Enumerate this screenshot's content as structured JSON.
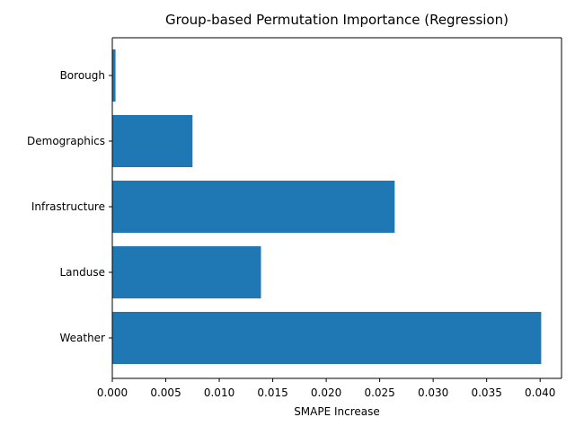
{
  "chart_data": {
    "type": "bar",
    "orientation": "horizontal",
    "title": "Group-based Permutation Importance (Regression)",
    "xlabel": "SMAPE Increase",
    "ylabel": "",
    "categories": [
      "Borough",
      "Demographics",
      "Infrastructure",
      "Landuse",
      "Weather"
    ],
    "values": [
      0.0003,
      0.0075,
      0.0264,
      0.0139,
      0.0401
    ],
    "xlim": [
      0,
      0.042
    ],
    "xticks": [
      0.0,
      0.005,
      0.01,
      0.015,
      0.02,
      0.025,
      0.03,
      0.035,
      0.04
    ],
    "xtick_labels": [
      "0.000",
      "0.005",
      "0.010",
      "0.015",
      "0.020",
      "0.025",
      "0.030",
      "0.035",
      "0.040"
    ],
    "grid": false,
    "legend": "none",
    "colors": {
      "bar": "#1f77b4",
      "axis": "#000000",
      "background": "#ffffff"
    }
  }
}
